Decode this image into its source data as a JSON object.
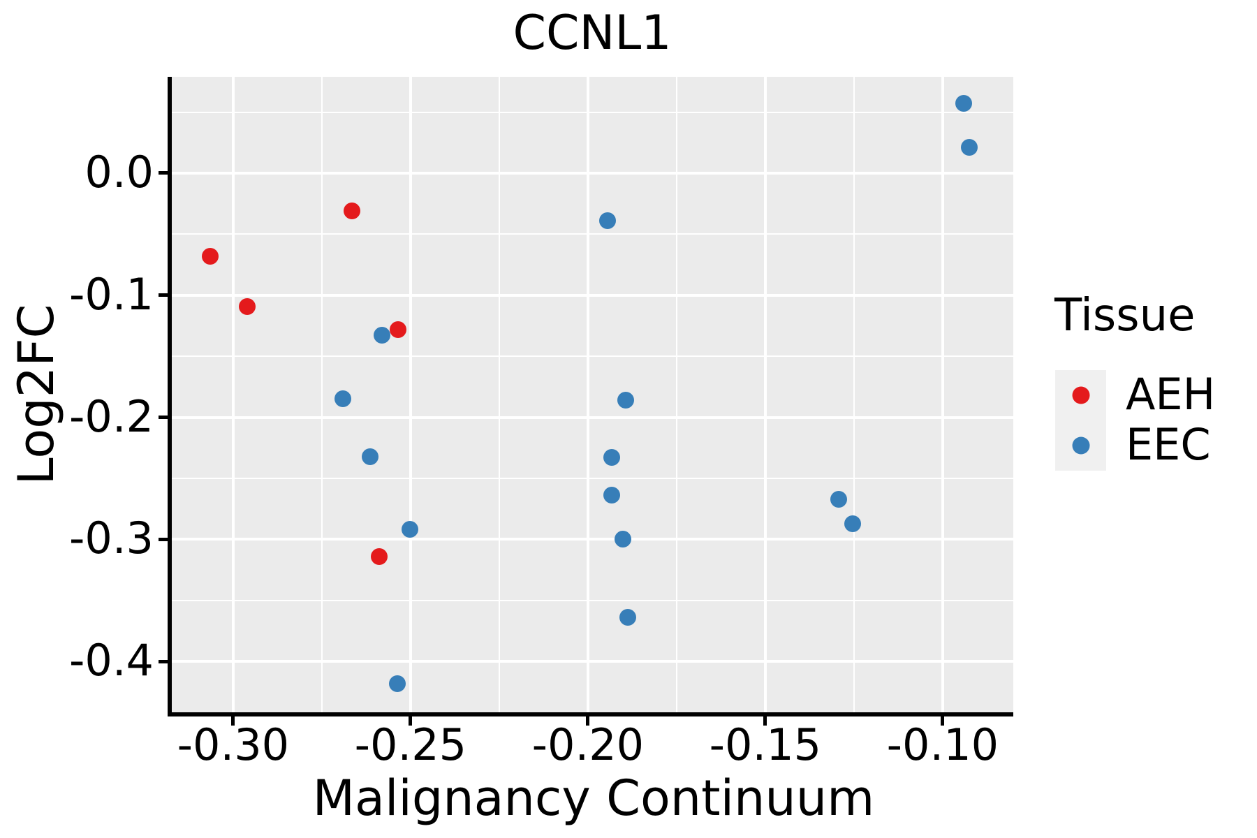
{
  "title": "CCNL1",
  "colors": {
    "panel_bg": "#EBEBEB",
    "grid": "#FFFFFF",
    "axis": "#000000",
    "legend_key_bg": "#F0F0F0",
    "aeh": "#E41A1C",
    "eec": "#377EB8"
  },
  "legend": {
    "title": "Tissue",
    "entries": [
      {
        "label": "AEH",
        "color": "#E41A1C"
      },
      {
        "label": "EEC",
        "color": "#377EB8"
      }
    ]
  },
  "chart_data": {
    "type": "scatter",
    "title": "CCNL1",
    "xlabel": "Malignancy Continuum",
    "ylabel": "Log2FC",
    "xlim": [
      -0.3173,
      -0.0801
    ],
    "ylim": [
      -0.4416,
      0.0789
    ],
    "grid": true,
    "legend_title": "Tissue",
    "legend_position": "right",
    "x_ticks": {
      "values": [
        -0.3,
        -0.25,
        -0.2,
        -0.15,
        -0.1
      ],
      "labels": [
        "-0.30",
        "-0.25",
        "-0.20",
        "-0.15",
        "-0.10"
      ]
    },
    "y_ticks": {
      "values": [
        0.0,
        -0.1,
        -0.2,
        -0.3,
        -0.4
      ],
      "labels": [
        "0.0",
        "-0.1",
        "-0.2",
        "-0.3",
        "-0.4"
      ]
    },
    "x_minor_ticks": [
      -0.275,
      -0.225,
      -0.175,
      -0.125
    ],
    "y_minor_ticks": [
      0.05,
      -0.05,
      -0.15,
      -0.25,
      -0.35
    ],
    "series": [
      {
        "name": "AEH",
        "color": "#E41A1C",
        "points": [
          [
            -0.2665,
            -0.031
          ],
          [
            -0.3065,
            -0.068
          ],
          [
            -0.2961,
            -0.109
          ],
          [
            -0.2535,
            -0.128
          ],
          [
            -0.2589,
            -0.314
          ]
        ]
      },
      {
        "name": "EEC",
        "color": "#377EB8",
        "points": [
          [
            -0.0941,
            0.057
          ],
          [
            -0.0925,
            0.021
          ],
          [
            -0.1945,
            -0.039
          ],
          [
            -0.2581,
            -0.133
          ],
          [
            -0.2691,
            -0.185
          ],
          [
            -0.1894,
            -0.186
          ],
          [
            -0.2614,
            -0.232
          ],
          [
            -0.1933,
            -0.233
          ],
          [
            -0.1933,
            -0.264
          ],
          [
            -0.2502,
            -0.292
          ],
          [
            -0.1902,
            -0.3
          ],
          [
            -0.1293,
            -0.267
          ],
          [
            -0.1254,
            -0.287
          ],
          [
            -0.1888,
            -0.364
          ],
          [
            -0.2537,
            -0.418
          ]
        ]
      }
    ]
  }
}
